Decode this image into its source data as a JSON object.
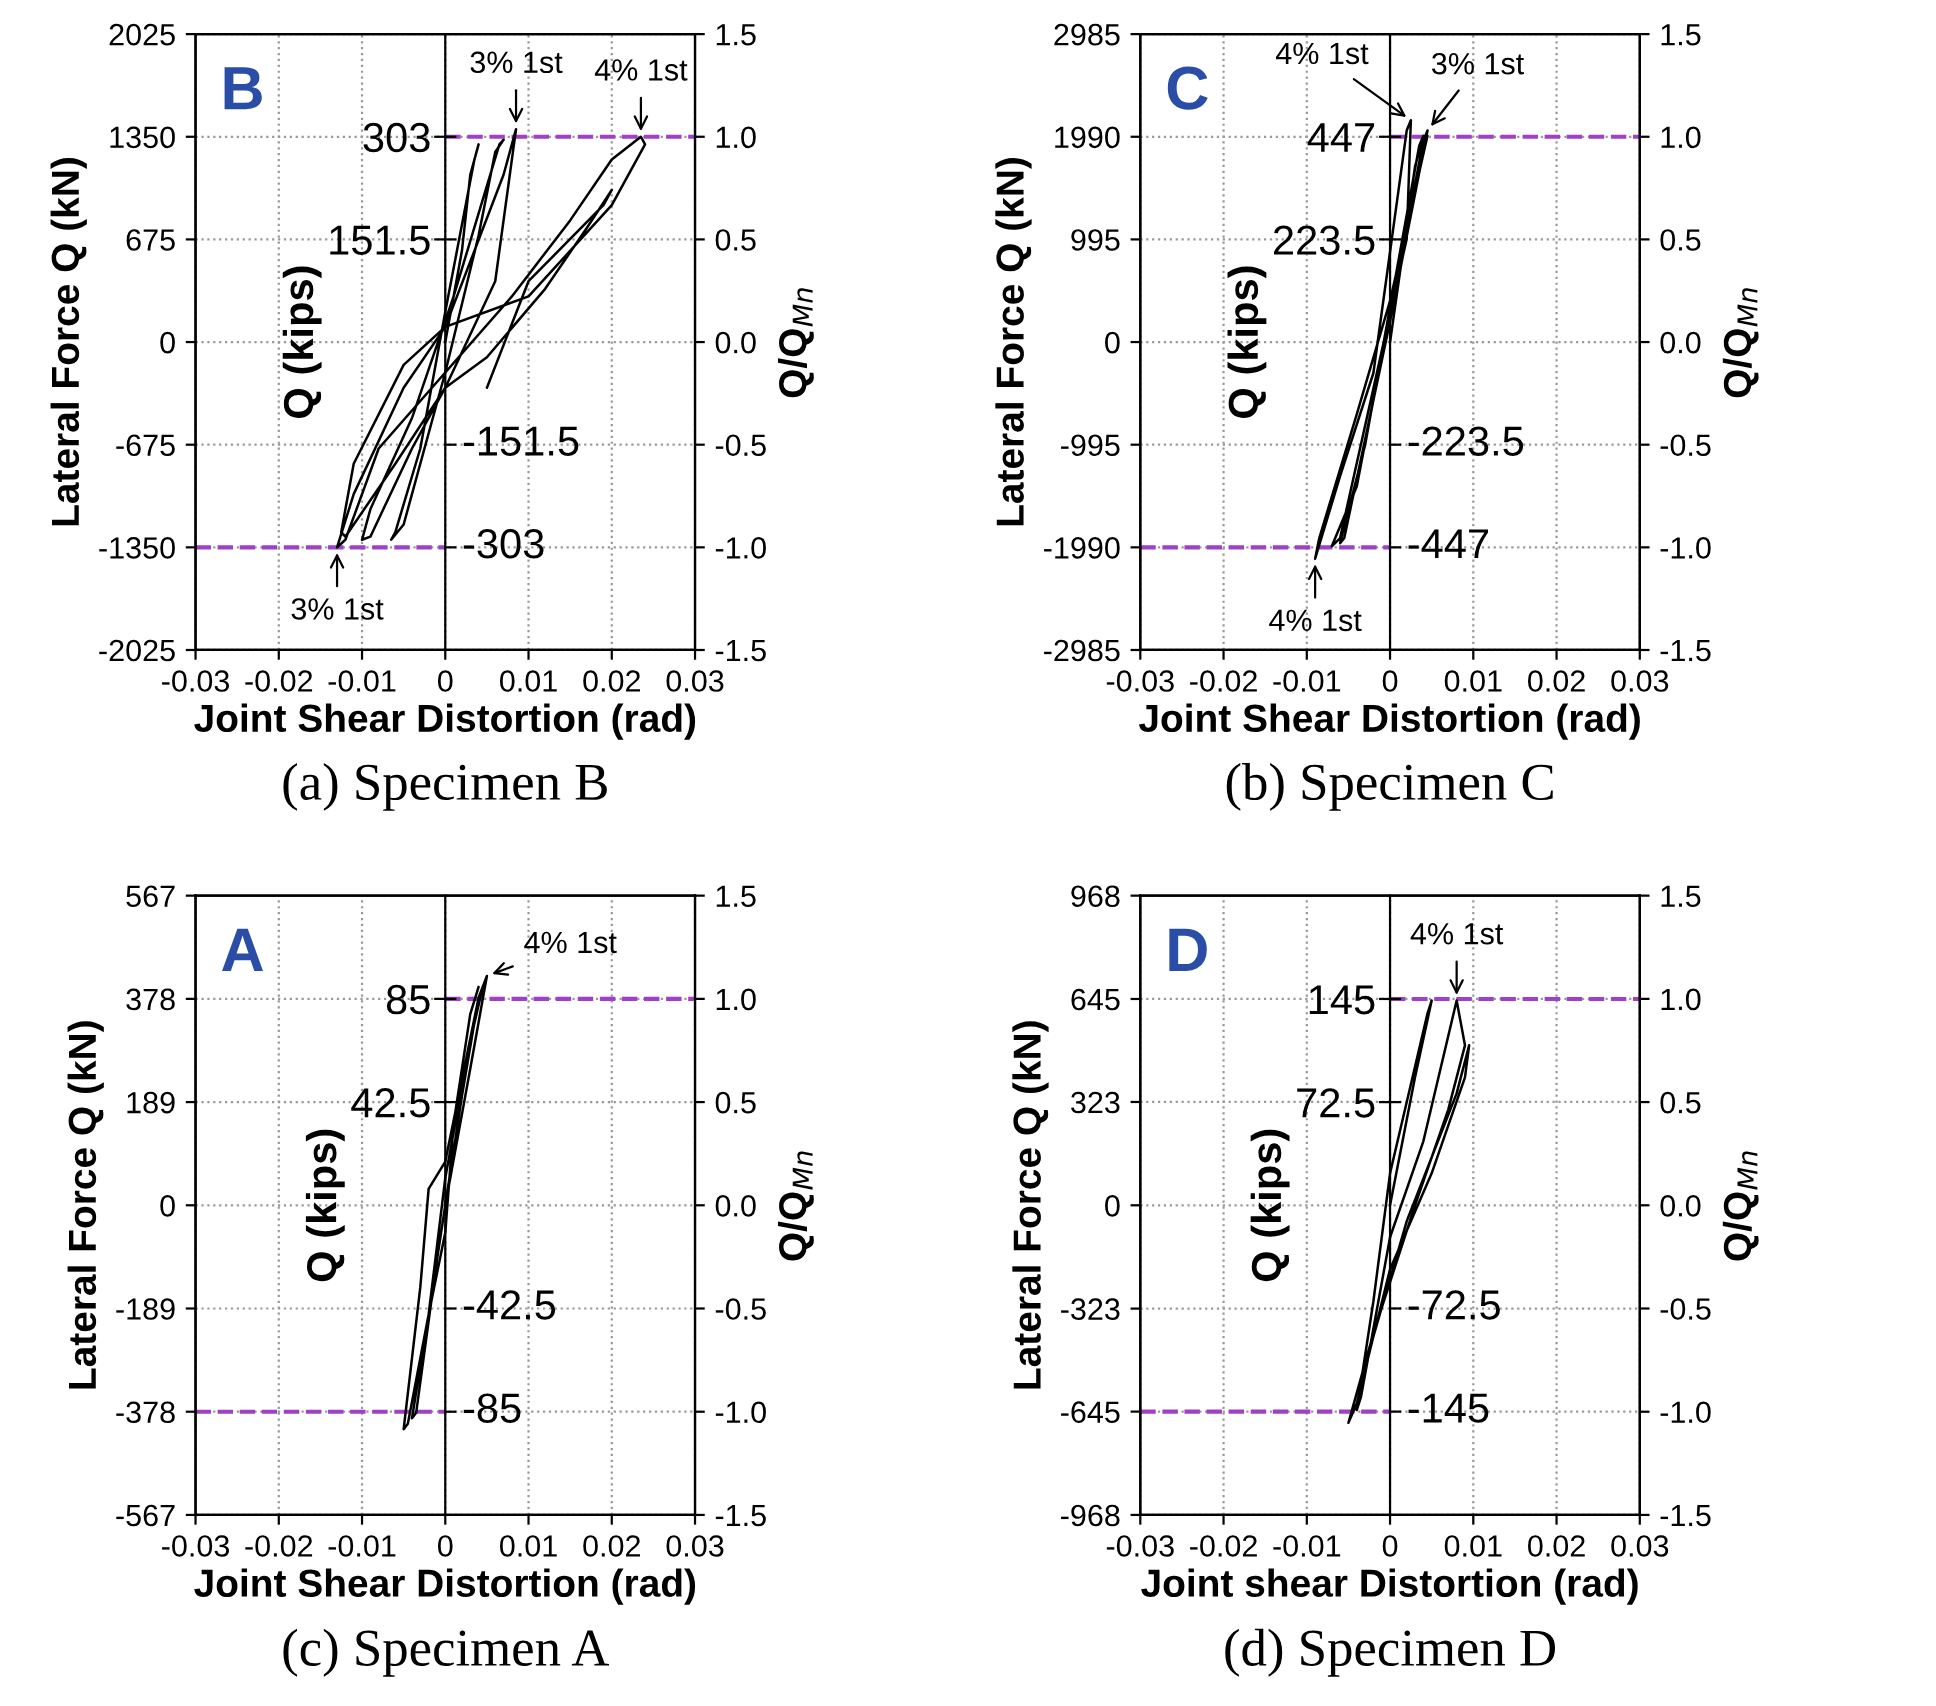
{
  "chart_data": [
    {
      "type": "line",
      "title": "(a) Specimen B",
      "subtitle": "B",
      "xlabel": "Joint Shear Distortion (rad)",
      "ylabel": "Lateral Force Q (kN)",
      "y2label": "Q/Q$_{Mn}$",
      "y3label": "Q (kips)",
      "xlim": [
        -0.03,
        0.03
      ],
      "xticks": [
        -0.03,
        -0.02,
        -0.01,
        0,
        0.01,
        0.02,
        0.03
      ],
      "ylim": [
        -2025,
        2025
      ],
      "yticks": [
        -2025,
        -1350,
        -675,
        0,
        675,
        1350,
        2025
      ],
      "y2lim": [
        -1.5,
        1.5
      ],
      "y2ticks": [
        {
          "value": -1.5,
          "label": "-1.5"
        },
        {
          "value": -1,
          "label": "-1.0"
        },
        {
          "value": -0.5,
          "label": "-0.5"
        },
        {
          "value": 0,
          "label": "0.0"
        },
        {
          "value": 0.5,
          "label": "0.5"
        },
        {
          "value": 1,
          "label": "1.0"
        },
        {
          "value": 1.5,
          "label": "1.5"
        }
      ],
      "y3lim": [
        -454.5,
        454.5
      ],
      "y3ticks": [
        151.5,
        303
      ],
      "grid": true,
      "marker": "none",
      "line_style": "solid",
      "ref_lines": [
        {
          "axis": "y",
          "value": 1350,
          "color": "#a040c8",
          "line_style": "dashed"
        },
        {
          "axis": "y",
          "value": -1350,
          "color": "#a040c8",
          "line_style": "dashed"
        }
      ],
      "annotations": [
        {
          "text": "3% 1st",
          "x": 0.0085,
          "y": 1400
        },
        {
          "text": "4% 1st",
          "x": 0.0235,
          "y": 1350
        },
        {
          "text": "3% 1st",
          "x": -0.013,
          "y": -1350
        },
        "-151.5",
        "-303"
      ],
      "series": [
        {
          "color": "#000000",
          "x": [
            0,
            0.002,
            0.003,
            0.004,
            0.0035,
            0,
            -0.003,
            -0.006,
            -0.0065,
            -0.005,
            0,
            0.004,
            0.006,
            0.007,
            0.0065,
            0.001,
            -0.004,
            -0.009,
            -0.01,
            -0.009,
            -0.004,
            0,
            0.006,
            0.0085,
            0.007,
            0,
            -0.005,
            -0.011,
            -0.013,
            -0.012,
            -0.008,
            0,
            0.008,
            0.015,
            0.02,
            0.0235,
            0.024,
            0.02,
            0.01,
            0,
            -0.005,
            -0.011,
            -0.0125,
            -0.012,
            -0.006,
            0,
            0.005,
            0.012,
            0.017,
            0.02,
            0.019,
            0.01,
            0.005
          ],
          "values": [
            0,
            600,
            1100,
            1300,
            1200,
            200,
            -700,
            -1250,
            -1300,
            -1200,
            -200,
            700,
            1250,
            1330,
            1300,
            300,
            -500,
            -1100,
            -1300,
            -1280,
            -700,
            -300,
            400,
            1400,
            1100,
            100,
            -300,
            -1000,
            -1350,
            -1300,
            -700,
            -200,
            300,
            800,
            1200,
            1350,
            1300,
            900,
            300,
            100,
            -150,
            -800,
            -1250,
            -1280,
            -800,
            -300,
            -100,
            350,
            750,
            1000,
            900,
            400,
            -300
          ]
        }
      ]
    },
    {
      "type": "line",
      "title": "(b) Specimen C",
      "subtitle": "C",
      "xlabel": "Joint Shear Distortion (rad)",
      "ylabel": "Lateral Force Q (kN)",
      "y2label": "Q/Q$_{Mn}$",
      "y3label": "Q (kips)",
      "xlim": [
        -0.03,
        0.03
      ],
      "xticks": [
        -0.03,
        -0.02,
        -0.01,
        0,
        0.01,
        0.02,
        0.03
      ],
      "ylim": [
        -2985,
        2985
      ],
      "yticks": [
        -2985,
        -1990,
        -995,
        0,
        995,
        1990,
        2985
      ],
      "y2lim": [
        -1.5,
        1.5
      ],
      "y2ticks": [
        {
          "value": -1.5,
          "label": "-1.5"
        },
        {
          "value": -1,
          "label": "-1.0"
        },
        {
          "value": -0.5,
          "label": "-0.5"
        },
        {
          "value": 0,
          "label": "0.0"
        },
        {
          "value": 0.5,
          "label": "0.5"
        },
        {
          "value": 1,
          "label": "1.0"
        },
        {
          "value": 1.5,
          "label": "1.5"
        }
      ],
      "y3lim": [
        -670.5,
        670.5
      ],
      "y3ticks": [
        223.5,
        447
      ],
      "grid": true,
      "marker": "none",
      "line_style": "solid",
      "ref_lines": [
        {
          "axis": "y",
          "value": 1990,
          "color": "#a040c8",
          "line_style": "dashed"
        },
        {
          "axis": "y",
          "value": -1990,
          "color": "#a040c8",
          "line_style": "dashed"
        }
      ],
      "annotations": [
        {
          "text": "4% 1st",
          "x": 0.0025,
          "y": 2150
        },
        {
          "text": "3% 1st",
          "x": 0.0045,
          "y": 2050
        },
        {
          "text": "4% 1st",
          "x": -0.009,
          "y": -2100
        },
        "-223.5",
        "-447"
      ],
      "series": [
        {
          "color": "#000000",
          "x": [
            0,
            0.003,
            0.004,
            0.0035,
            -0.003,
            -0.006,
            -0.0055,
            0,
            0.0045,
            0.004,
            -0.004,
            -0.007,
            -0.006,
            0.002,
            0.0025,
            0.002,
            -0.002,
            -0.006,
            -0.009,
            -0.0085,
            -0.004,
            0,
            0.0045
          ],
          "values": [
            0,
            1700,
            2000,
            1900,
            -1000,
            -1950,
            -1900,
            200,
            2050,
            1950,
            -1400,
            -1980,
            -1900,
            1000,
            2150,
            2050,
            -300,
            -1300,
            -2100,
            -1900,
            -700,
            400,
            2000
          ]
        }
      ]
    },
    {
      "type": "line",
      "title": "(c) Specimen A",
      "subtitle": "A",
      "xlabel": "Joint Shear Distortion (rad)",
      "ylabel": "Lateral Force Q (kN)",
      "y2label": "Q/Q$_{Mn}$",
      "y3label": "Q (kips)",
      "xlim": [
        -0.03,
        0.03
      ],
      "xticks": [
        -0.03,
        -0.02,
        -0.01,
        0,
        0.01,
        0.02,
        0.03
      ],
      "ylim": [
        -567,
        567
      ],
      "yticks": [
        -567,
        -378,
        -189,
        0,
        189,
        378,
        567
      ],
      "y2lim": [
        -1.5,
        1.5
      ],
      "y2ticks": [
        {
          "value": -1.5,
          "label": "-1.5"
        },
        {
          "value": -1,
          "label": "-1.0"
        },
        {
          "value": -0.5,
          "label": "-0.5"
        },
        {
          "value": 0,
          "label": "0.0"
        },
        {
          "value": 0.5,
          "label": "0.5"
        },
        {
          "value": 1,
          "label": "1.0"
        },
        {
          "value": 1.5,
          "label": "1.5"
        }
      ],
      "y3lim": [
        -127.5,
        127.5
      ],
      "y3ticks": [
        42.5,
        85
      ],
      "grid": true,
      "marker": "none",
      "line_style": "solid",
      "ref_lines": [
        {
          "axis": "y",
          "value": 378,
          "color": "#a040c8",
          "line_style": "dashed"
        },
        {
          "axis": "y",
          "value": -378,
          "color": "#a040c8",
          "line_style": "dashed"
        }
      ],
      "annotations": [
        {
          "text": "4% 1st",
          "x": 0.005,
          "y": 420
        },
        "-42.5",
        "-85"
      ],
      "series": [
        {
          "color": "#000000",
          "x": [
            0,
            0.002,
            0.004,
            0.0045,
            0.003,
            0,
            -0.002,
            -0.004,
            -0.0035,
            -0.001,
            0,
            0.003,
            0.005,
            0.004,
            0,
            -0.002,
            -0.003,
            -0.005,
            -0.0045,
            -0.002,
            0,
            0.001,
            0.003,
            0.004
          ],
          "values": [
            0,
            200,
            380,
            400,
            300,
            50,
            -200,
            -390,
            -380,
            -100,
            0,
            250,
            420,
            380,
            80,
            30,
            -150,
            -410,
            -400,
            -200,
            -50,
            150,
            350,
            400
          ]
        }
      ]
    },
    {
      "type": "line",
      "title": "(d) Specimen D",
      "subtitle": "D",
      "xlabel": "Joint shear Distortion (rad)",
      "ylabel": "Lateral Force Q (kN)",
      "y2label": "Q/Q$_{Mn}$",
      "y3label": "Q (kips)",
      "xlim": [
        -0.03,
        0.03
      ],
      "xticks": [
        -0.03,
        -0.02,
        -0.01,
        0,
        0.01,
        0.02,
        0.03
      ],
      "ylim": [
        -968,
        968
      ],
      "yticks": [
        -968,
        -645,
        -323,
        0,
        323,
        645,
        968
      ],
      "y2lim": [
        -1.5,
        1.5
      ],
      "y2ticks": [
        {
          "value": -1.5,
          "label": "-1.5"
        },
        {
          "value": -1,
          "label": "-1.0"
        },
        {
          "value": -0.5,
          "label": "-0.5"
        },
        {
          "value": 0,
          "label": "0.0"
        },
        {
          "value": 0.5,
          "label": "0.5"
        },
        {
          "value": 1,
          "label": "1.0"
        },
        {
          "value": 1.5,
          "label": "1.5"
        }
      ],
      "y3lim": [
        -217.6,
        217.6
      ],
      "y3ticks": [
        72.5,
        145
      ],
      "grid": true,
      "marker": "none",
      "line_style": "solid",
      "ref_lines": [
        {
          "axis": "y",
          "value": 645,
          "color": "#a040c8",
          "line_style": "dashed"
        },
        {
          "axis": "y",
          "value": -645,
          "color": "#a040c8",
          "line_style": "dashed"
        }
      ],
      "annotations": [
        {
          "text": "4% 1st",
          "x": 0.008,
          "y": 640
        },
        "-72.5",
        "-145"
      ],
      "series": [
        {
          "color": "#000000",
          "x": [
            0,
            0.003,
            0.005,
            0.0045,
            0,
            -0.002,
            -0.004,
            -0.0035,
            0,
            0.004,
            0.008,
            0.009,
            0.007,
            0.003,
            -0.002,
            -0.005,
            -0.004,
            0,
            0.005,
            0.009,
            0.0095,
            0.008,
            0.002,
            -0.003
          ],
          "values": [
            0,
            400,
            640,
            600,
            100,
            -300,
            -640,
            -600,
            -100,
            200,
            640,
            500,
            300,
            0,
            -400,
            -680,
            -620,
            -200,
            100,
            400,
            500,
            350,
            -50,
            -500
          ]
        }
      ]
    }
  ]
}
